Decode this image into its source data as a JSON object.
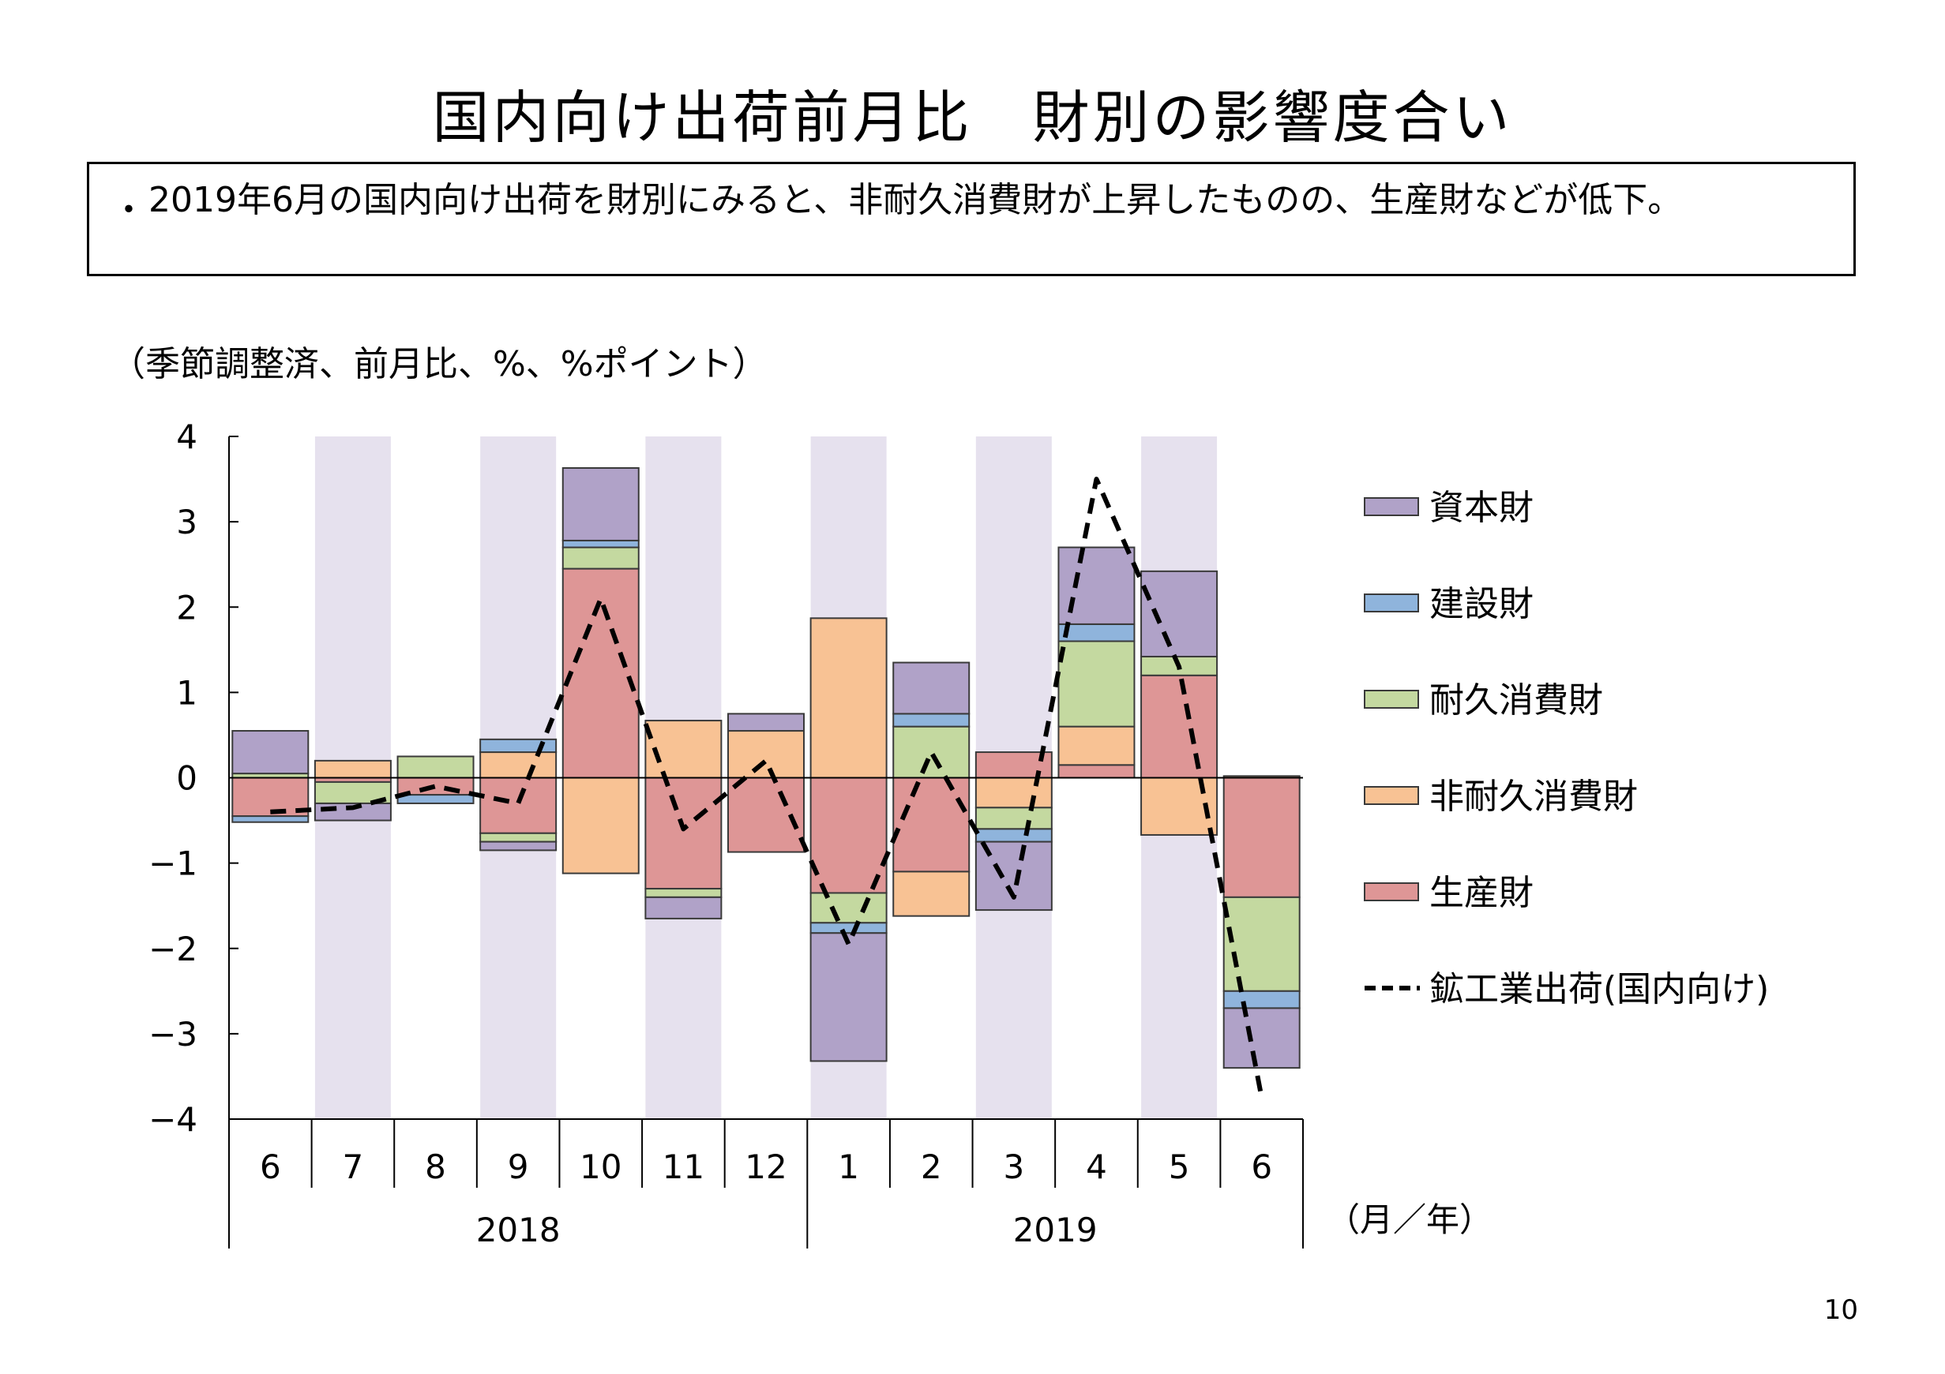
{
  "page": {
    "title": "国内向け出荷前月比　財別の影響度合い",
    "summary_bullet": "・",
    "summary": "2019年6月の国内向け出荷を財別にみると、非耐久消費財が上昇したものの、生産財などが低下。",
    "units": "（季節調整済、前月比、%、%ポイント）",
    "page_number": "10"
  },
  "chart_data": {
    "type": "bar",
    "stacked": true,
    "categories": [
      "6",
      "7",
      "8",
      "9",
      "10",
      "11",
      "12",
      "1",
      "2",
      "3",
      "4",
      "5",
      "6"
    ],
    "year_groups": [
      {
        "label": "2018",
        "from": 0,
        "to": 6
      },
      {
        "label": "2019",
        "from": 7,
        "to": 12
      }
    ],
    "x_unit_label": "（月／年）",
    "ylim": [
      -4,
      4
    ],
    "yticks": [
      4,
      3,
      2,
      1,
      0,
      -1,
      -2,
      -3,
      -4
    ],
    "ytick_labels": [
      "4",
      "3",
      "2",
      "1",
      "0",
      "−1",
      "−2",
      "−3",
      "−4"
    ],
    "shaded_columns": [
      1,
      3,
      5,
      7,
      9,
      11
    ],
    "shade_color": "#e6e1ee",
    "stack_order": [
      "生産財",
      "非耐久消費財",
      "耐久消費財",
      "建設財",
      "資本財"
    ],
    "series": [
      {
        "name": "資本財",
        "color": "#b0a2c8",
        "values": [
          0.5,
          -0.2,
          0.0,
          -0.1,
          0.85,
          -0.25,
          0.2,
          -1.5,
          0.6,
          -0.8,
          0.9,
          1.0,
          -0.7
        ]
      },
      {
        "name": "建設財",
        "color": "#8fb4dc",
        "values": [
          -0.07,
          0.0,
          -0.1,
          0.15,
          0.08,
          0.0,
          0.0,
          -0.12,
          0.15,
          -0.15,
          0.2,
          0.0,
          -0.2
        ]
      },
      {
        "name": "耐久消費財",
        "color": "#c4d9a0",
        "values": [
          0.05,
          -0.25,
          0.25,
          -0.1,
          0.25,
          -0.1,
          0.0,
          -0.35,
          0.6,
          -0.25,
          1.0,
          0.22,
          -1.1
        ]
      },
      {
        "name": "非耐久消費財",
        "color": "#f8c294",
        "values": [
          0.0,
          0.2,
          0.0,
          0.3,
          -1.12,
          0.67,
          0.55,
          1.87,
          -0.52,
          -0.35,
          0.45,
          -0.67,
          0.02
        ]
      },
      {
        "name": "生産財",
        "color": "#de9696",
        "values": [
          -0.45,
          -0.05,
          -0.2,
          -0.65,
          2.45,
          -1.3,
          -0.87,
          -1.35,
          -1.1,
          0.3,
          0.15,
          1.2,
          -1.4
        ]
      }
    ],
    "line": {
      "name": "鉱工業出荷(国内向け)",
      "style": "dashed",
      "color": "#000000",
      "values": [
        -0.4,
        -0.35,
        -0.1,
        -0.3,
        2.1,
        -0.6,
        0.2,
        -1.95,
        0.3,
        -1.4,
        3.5,
        1.3,
        -3.75
      ]
    },
    "legend": {
      "position": "right",
      "items": [
        "資本財",
        "建設財",
        "耐久消費財",
        "非耐久消費財",
        "生産財",
        "鉱工業出荷(国内向け)"
      ]
    },
    "grid": false
  }
}
